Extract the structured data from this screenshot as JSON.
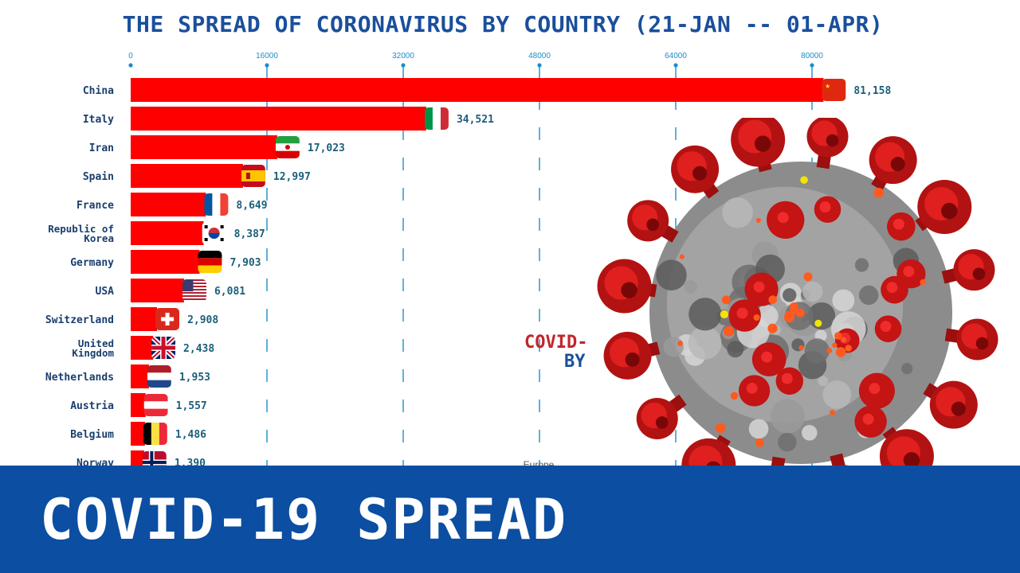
{
  "title": "THE SPREAD OF CORONAVIRUS BY COUNTRY (21-JAN -- 01-APR)",
  "overlay": {
    "line1": "COVID-",
    "line2": "BY",
    "region_label": "Europe"
  },
  "banner": {
    "text": "COVID-19 SPREAD"
  },
  "colors": {
    "bar": "#ff0000",
    "title": "#1a4f9c",
    "banner": "#0b4ea2",
    "axis": "#1f8ec9",
    "value_text": "#1a5f7a"
  },
  "chart_data": {
    "type": "bar",
    "orientation": "horizontal",
    "x_ticks": [
      0,
      16000,
      32000,
      48000,
      64000,
      80000
    ],
    "xlim": [
      0,
      80000
    ],
    "grid": "dashed vertical",
    "categories": [
      "China",
      "Italy",
      "Iran",
      "Spain",
      "France",
      "Republic of Korea",
      "Germany",
      "USA",
      "Switzerland",
      "United Kingdom",
      "Netherlands",
      "Austria",
      "Belgium",
      "Norway"
    ],
    "values": [
      81158,
      34521,
      17023,
      12997,
      8649,
      8387,
      7903,
      6081,
      2908,
      2438,
      1953,
      1557,
      1486,
      1390
    ],
    "value_labels": [
      "81,158",
      "34,521",
      "17,023",
      "12,997",
      "8,649",
      "8,387",
      "7,903",
      "6,081",
      "2,908",
      "2,438",
      "1,953",
      "1,557",
      "1,486",
      "1,390"
    ],
    "flags": [
      "china-flag-icon",
      "italy-flag-icon",
      "iran-flag-icon",
      "spain-flag-icon",
      "france-flag-icon",
      "korea-flag-icon",
      "germany-flag-icon",
      "usa-flag-icon",
      "switzerland-flag-icon",
      "uk-flag-icon",
      "netherlands-flag-icon",
      "austria-flag-icon",
      "belgium-flag-icon",
      "norway-flag-icon"
    ]
  }
}
